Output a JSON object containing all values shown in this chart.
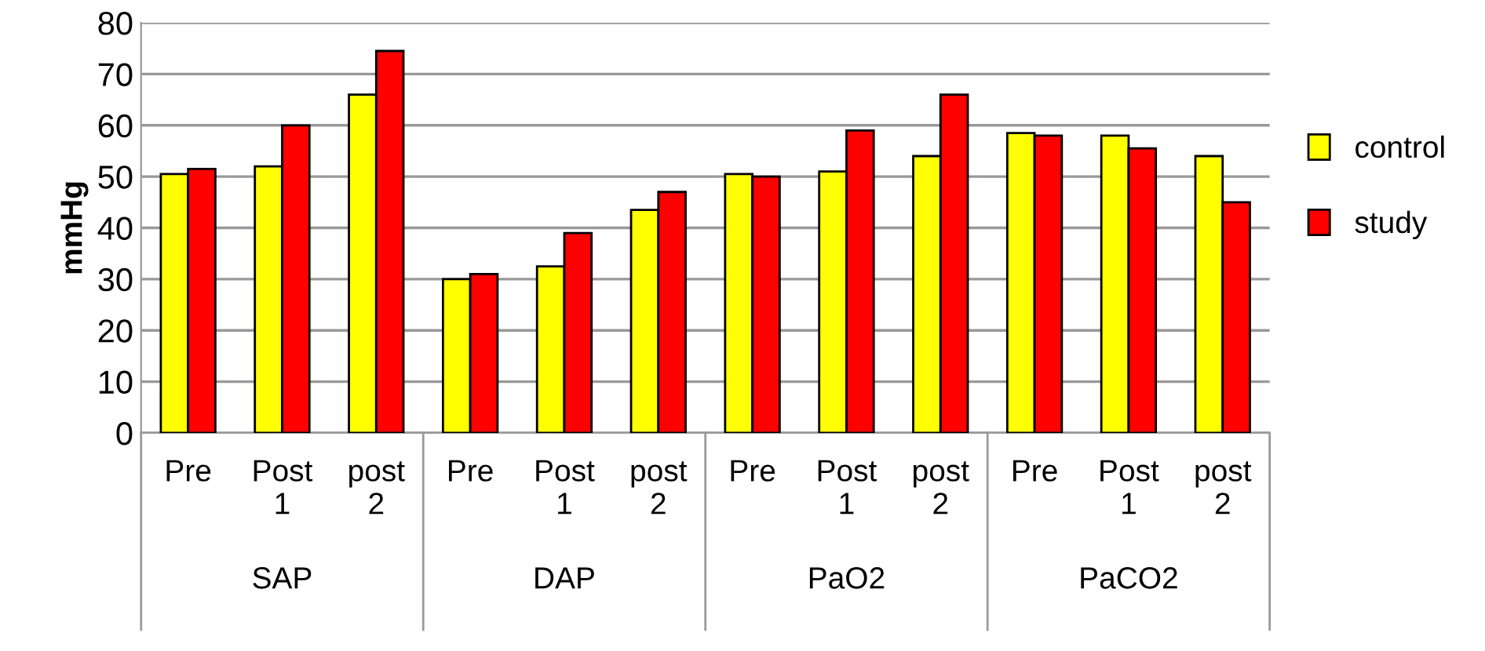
{
  "chart_data": {
    "type": "bar",
    "ylabel": "mmHg",
    "categories": [
      "Pre",
      "Post\n1",
      "post\n2",
      "Pre",
      "Post\n1",
      "post\n2",
      "Pre",
      "Post\n1",
      "post\n2",
      "Pre",
      "Post\n1",
      "post\n2"
    ],
    "annotations": [
      "SAP",
      "DAP",
      "PaO2",
      "PaCO2"
    ],
    "series": [
      {
        "name": "control",
        "color": "#ffff00",
        "values": [
          50.5,
          52,
          66,
          30,
          32.5,
          43.5,
          50.5,
          51,
          54,
          58.5,
          58,
          54
        ]
      },
      {
        "name": "study",
        "color": "#ff0000",
        "values": [
          51.5,
          60,
          74.5,
          31,
          39,
          47,
          50,
          59,
          66,
          58,
          55.5,
          45
        ]
      }
    ],
    "ylim": [
      0,
      80
    ],
    "yticks": [
      0,
      10,
      20,
      30,
      40,
      50,
      60,
      70,
      80
    ],
    "grid": "y",
    "legend": "right"
  }
}
